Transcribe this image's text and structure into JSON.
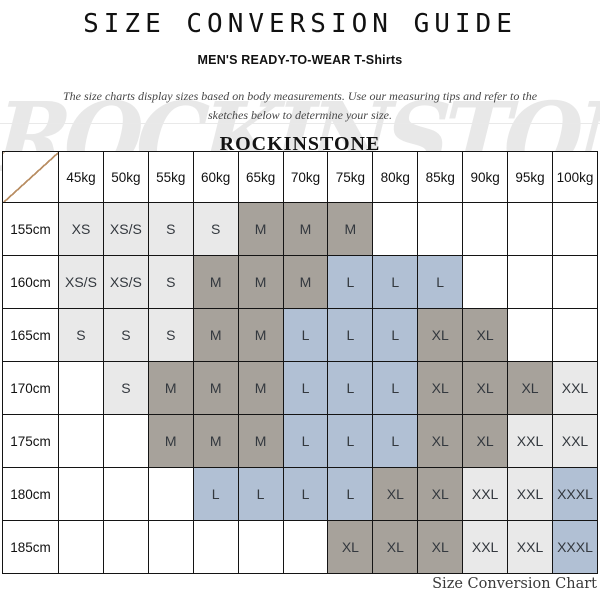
{
  "header": {
    "title": "SIZE CONVERSION GUIDE",
    "subtitle": "MEN'S READY-TO-WEAR T-Shirts",
    "description": "The size charts display sizes based on body measurements. Use our measuring tips and refer to the sketches below to determine your size.",
    "brand": "ROCKINSTONE",
    "watermark": "ROCKINSTONE"
  },
  "footer": {
    "caption": "Size Conversion Chart"
  },
  "colors": {
    "fill_light_gray": "#e9e9e9",
    "fill_taupe": "#a7a29b",
    "fill_blue": "#b1c0d4",
    "fill_empty": "#ffffff",
    "diagonal_line": "#b98e63",
    "grid_line": "#141414",
    "watermark_gray": "#d7d7d7"
  },
  "chart_data": {
    "type": "table",
    "title": "Size Conversion Guide — Men's Ready-To-Wear T-Shirts",
    "corner_label": "",
    "columns": [
      "45kg",
      "50kg",
      "55kg",
      "60kg",
      "65kg",
      "70kg",
      "75kg",
      "80kg",
      "85kg",
      "90kg",
      "95kg",
      "100kg"
    ],
    "rows": [
      {
        "label": "155cm",
        "cells": [
          "XS",
          "XS/S",
          "S",
          "S",
          "M",
          "M",
          "M",
          "",
          "",
          "",
          "",
          ""
        ]
      },
      {
        "label": "160cm",
        "cells": [
          "XS/S",
          "XS/S",
          "S",
          "M",
          "M",
          "M",
          "L",
          "L",
          "L",
          "",
          "",
          ""
        ]
      },
      {
        "label": "165cm",
        "cells": [
          "S",
          "S",
          "S",
          "M",
          "M",
          "L",
          "L",
          "L",
          "XL",
          "XL",
          "",
          ""
        ]
      },
      {
        "label": "170cm",
        "cells": [
          "",
          "S",
          "M",
          "M",
          "M",
          "L",
          "L",
          "L",
          "XL",
          "XL",
          "XL",
          "XXL"
        ]
      },
      {
        "label": "175cm",
        "cells": [
          "",
          "",
          "M",
          "M",
          "M",
          "L",
          "L",
          "L",
          "XL",
          "XL",
          "XXL",
          "XXL"
        ]
      },
      {
        "label": "180cm",
        "cells": [
          "",
          "",
          "",
          "L",
          "L",
          "L",
          "L",
          "XL",
          "XL",
          "XXL",
          "XXL",
          "XXXL"
        ]
      },
      {
        "label": "185cm",
        "cells": [
          "",
          "",
          "",
          "",
          "",
          "",
          "XL",
          "XL",
          "XL",
          "XXL",
          "XXL",
          "XXXL"
        ]
      }
    ],
    "size_colors": {
      "XS": "#e9e9e9",
      "XS/S": "#e9e9e9",
      "S": "#e9e9e9",
      "M": "#a7a29b",
      "L": "#b1c0d4",
      "XL": "#a7a29b",
      "XXL": "#e9e9e9",
      "XXXL": "#b1c0d4"
    },
    "legend_position": "none",
    "grid": true
  }
}
